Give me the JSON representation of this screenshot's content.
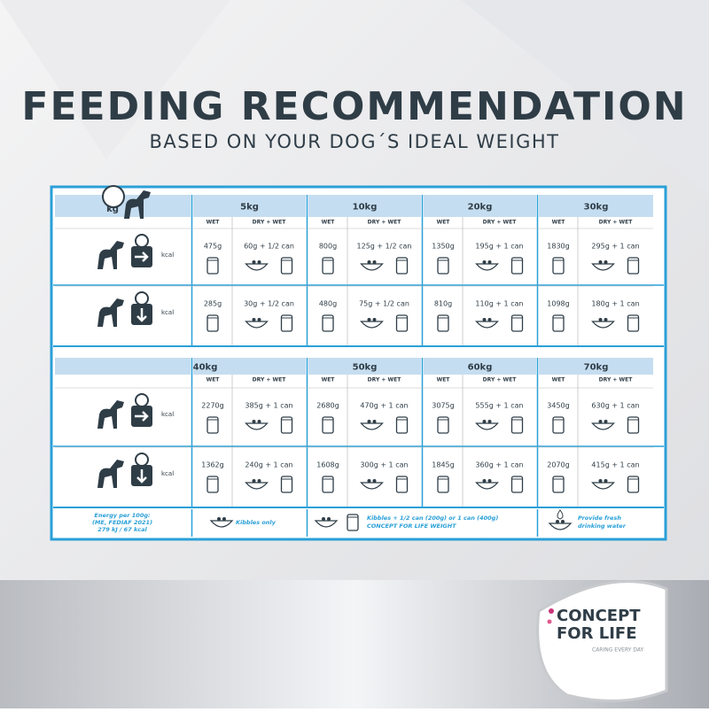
{
  "header": {
    "title": "FEEDING RECOMMENDATION",
    "subtitle": "BASED ON YOUR DOG´S IDEAL WEIGHT"
  },
  "table": {
    "icon_label": "kg",
    "wet_label": "WET",
    "dry_label": "DRY + WET",
    "kcal_label": "kcal",
    "blocks": [
      {
        "weights": [
          "5kg",
          "10kg",
          "20kg",
          "30kg"
        ],
        "rows": [
          [
            [
              "475g",
              "60g + 1/2 can"
            ],
            [
              "800g",
              "125g + 1/2 can"
            ],
            [
              "1350g",
              "195g + 1 can"
            ],
            [
              "1830g",
              "295g + 1 can"
            ]
          ],
          [
            [
              "285g",
              "30g + 1/2 can"
            ],
            [
              "480g",
              "75g + 1/2 can"
            ],
            [
              "810g",
              "110g + 1 can"
            ],
            [
              "1098g",
              "180g + 1 can"
            ]
          ]
        ]
      },
      {
        "weights": [
          "40kg",
          "50kg",
          "60kg",
          "70kg"
        ],
        "rows": [
          [
            [
              "2270g",
              "385g + 1 can"
            ],
            [
              "2680g",
              "470g + 1 can"
            ],
            [
              "3075g",
              "555g + 1 can"
            ],
            [
              "3450g",
              "630g + 1 can"
            ]
          ],
          [
            [
              "1362g",
              "240g + 1 can"
            ],
            [
              "1608g",
              "300g + 1 can"
            ],
            [
              "1845g",
              "360g + 1 can"
            ],
            [
              "2070g",
              "415g + 1 can"
            ]
          ]
        ]
      }
    ],
    "footer": {
      "energy": [
        "Energy per 100g:",
        "(ME, FEDIAF 2021)",
        "279 kJ / 67 kcal"
      ],
      "kibbles": "Kibbles only",
      "mix": [
        "Kibbles + 1/2 can (200g) or 1 can (400g)",
        "CONCEPT FOR LIFE WEIGHT"
      ],
      "water": [
        "Provide fresh",
        "drinking water"
      ]
    }
  },
  "logo": {
    "line1": "CONCEPT",
    "line2": "FOR LIFE",
    "tagline": "CARING EVERY DAY"
  }
}
